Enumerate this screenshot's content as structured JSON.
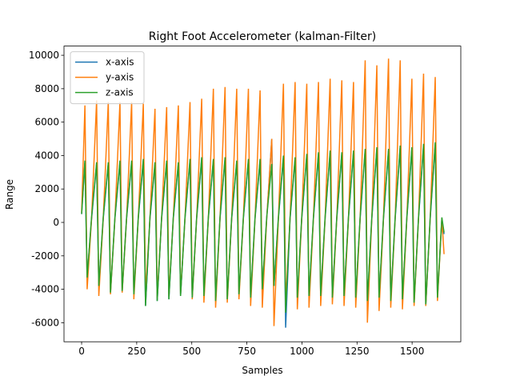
{
  "chart_data": {
    "type": "line",
    "title": "Right Foot Accelerometer (kalman-Filter)",
    "xlabel": "Samples",
    "ylabel": "Range",
    "xlim": [
      -80,
      1721
    ],
    "ylim": [
      -7140,
      10550
    ],
    "xticks": [
      0,
      250,
      500,
      750,
      1000,
      1250,
      1500
    ],
    "yticks": [
      -6000,
      -4000,
      -2000,
      0,
      2000,
      4000,
      6000,
      8000,
      10000
    ],
    "legend": "upper left",
    "x": [
      0,
      15,
      25,
      45,
      68,
      78,
      98,
      121,
      131,
      151,
      174,
      184,
      204,
      227,
      237,
      257,
      280,
      290,
      310,
      333,
      343,
      363,
      386,
      396,
      416,
      439,
      449,
      469,
      492,
      502,
      522,
      545,
      555,
      575,
      598,
      608,
      628,
      651,
      661,
      681,
      704,
      714,
      734,
      757,
      767,
      787,
      810,
      820,
      840,
      863,
      873,
      893,
      916,
      926,
      946,
      969,
      979,
      999,
      1022,
      1032,
      1052,
      1075,
      1085,
      1105,
      1128,
      1138,
      1158,
      1181,
      1191,
      1211,
      1234,
      1244,
      1264,
      1287,
      1297,
      1317,
      1340,
      1350,
      1370,
      1393,
      1403,
      1423,
      1446,
      1456,
      1476,
      1499,
      1509,
      1529,
      1552,
      1562,
      1582,
      1605,
      1615,
      1635,
      1645
    ],
    "series": [
      {
        "name": "x-axis",
        "color": "#1f77b4",
        "values": [
          500,
          3600,
          -3300,
          200,
          3500,
          -3800,
          200,
          3500,
          -4200,
          200,
          3600,
          -4100,
          200,
          3600,
          -4300,
          200,
          3700,
          -5000,
          200,
          3500,
          -4700,
          200,
          3600,
          -4600,
          200,
          3500,
          -4400,
          200,
          3700,
          -4500,
          200,
          3800,
          -4400,
          200,
          3700,
          -4700,
          200,
          3800,
          -4600,
          200,
          3600,
          -4300,
          200,
          3700,
          -4500,
          200,
          3700,
          -4000,
          200,
          5000,
          -3800,
          200,
          3900,
          -6300,
          200,
          3800,
          -4500,
          200,
          4000,
          -4400,
          200,
          4100,
          -4400,
          200,
          4200,
          -4500,
          200,
          4100,
          -4400,
          200,
          4200,
          -4500,
          200,
          4300,
          -4700,
          200,
          4400,
          -4500,
          200,
          4300,
          -4700,
          200,
          4500,
          -4600,
          200,
          4400,
          -4800,
          200,
          4600,
          -4900,
          200,
          4700,
          -4500,
          200,
          -700
        ]
      },
      {
        "name": "y-axis",
        "color": "#ff7f0e",
        "values": [
          600,
          7000,
          -4000,
          200,
          7300,
          -4400,
          200,
          7200,
          -4300,
          200,
          7200,
          -4200,
          200,
          7200,
          -4600,
          200,
          7100,
          -4300,
          200,
          6800,
          -4500,
          200,
          6900,
          -4400,
          200,
          7000,
          -4300,
          200,
          7200,
          -4600,
          200,
          7400,
          -4800,
          200,
          8000,
          -5100,
          200,
          8100,
          -4800,
          200,
          8000,
          -4600,
          200,
          8000,
          -5000,
          200,
          7900,
          -5100,
          200,
          5000,
          -6200,
          200,
          8300,
          -4800,
          200,
          8400,
          -5200,
          200,
          8300,
          -5100,
          200,
          8400,
          -5000,
          200,
          8600,
          -4900,
          200,
          8500,
          -5000,
          200,
          8400,
          -5100,
          200,
          9700,
          -6000,
          200,
          9400,
          -5300,
          200,
          9800,
          -5100,
          200,
          9700,
          -5200,
          200,
          8600,
          -5000,
          200,
          8900,
          -5000,
          200,
          8700,
          -4700,
          200,
          -1900
        ]
      },
      {
        "name": "z-axis",
        "color": "#2ca02c",
        "values": [
          500,
          3700,
          -3300,
          300,
          3600,
          -3800,
          300,
          3600,
          -4200,
          300,
          3700,
          -4100,
          300,
          3700,
          -4300,
          300,
          3800,
          -5000,
          300,
          3600,
          -4700,
          300,
          3700,
          -4600,
          300,
          3600,
          -4400,
          300,
          3800,
          -4500,
          300,
          3900,
          -4400,
          300,
          3800,
          -4700,
          300,
          3900,
          -4600,
          300,
          3700,
          -4300,
          300,
          3800,
          -4500,
          300,
          3800,
          -4000,
          300,
          3500,
          -3800,
          300,
          4000,
          -5400,
          300,
          3900,
          -4500,
          300,
          4100,
          -4400,
          300,
          4200,
          -4400,
          300,
          4300,
          -4500,
          300,
          4200,
          -4400,
          300,
          4300,
          -4500,
          300,
          4400,
          -4700,
          300,
          4500,
          -4500,
          300,
          4400,
          -4700,
          300,
          4600,
          -4600,
          300,
          4500,
          -4800,
          300,
          4700,
          -4900,
          300,
          4800,
          -4500,
          300,
          -600
        ]
      }
    ]
  }
}
